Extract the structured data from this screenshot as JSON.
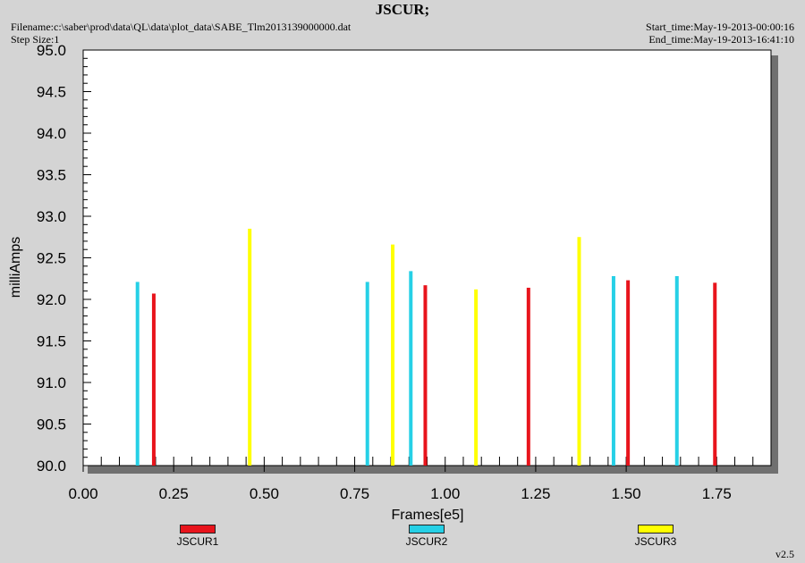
{
  "header": {
    "title": "JSCUR;",
    "filename": "Filename:c:\\saber\\prod\\data\\QL\\data\\plot_data\\SABE_Tlm2013139000000.dat",
    "step_size": "Step Size:1",
    "start_time": "Start_time:May-19-2013-00:00:16",
    "end_time": "End_time:May-19-2013-16:41:10",
    "version": "v2.5"
  },
  "chart_data": {
    "type": "bar",
    "xlabel": "Frames[e5]",
    "ylabel": "milliAmps",
    "xlim": [
      0,
      1.9
    ],
    "ylim": [
      90.0,
      95.0
    ],
    "x_ticks": [
      "0.00",
      "0.25",
      "0.50",
      "0.75",
      "1.00",
      "1.25",
      "1.50",
      "1.75"
    ],
    "y_ticks": [
      "90.0",
      "90.5",
      "91.0",
      "91.5",
      "92.0",
      "92.5",
      "93.0",
      "93.5",
      "94.0",
      "94.5",
      "95.0"
    ],
    "grid": false,
    "legend_position": "bottom",
    "series": [
      {
        "name": "JSCUR1",
        "color": "#e8141c",
        "points": [
          [
            0.195,
            92.07
          ],
          [
            0.945,
            92.17
          ],
          [
            1.23,
            92.14
          ],
          [
            1.505,
            92.23
          ],
          [
            1.745,
            92.2
          ]
        ]
      },
      {
        "name": "JSCUR2",
        "color": "#26d0e6",
        "points": [
          [
            0.15,
            92.21
          ],
          [
            0.785,
            92.21
          ],
          [
            0.905,
            92.34
          ],
          [
            1.465,
            92.28
          ],
          [
            1.64,
            92.28
          ]
        ]
      },
      {
        "name": "JSCUR3",
        "color": "#ffff00",
        "points": [
          [
            0.46,
            92.85
          ],
          [
            0.855,
            92.66
          ],
          [
            1.085,
            92.12
          ],
          [
            1.37,
            92.75
          ]
        ]
      }
    ]
  }
}
